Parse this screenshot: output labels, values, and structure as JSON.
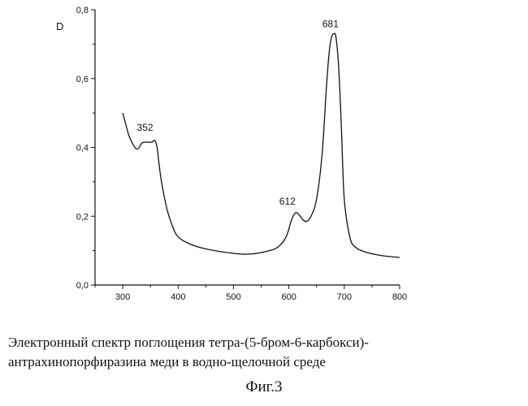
{
  "chart_data": {
    "type": "line",
    "ylabel": "D",
    "xlabel": "",
    "xlim": [
      250,
      800
    ],
    "ylim": [
      0,
      0.8
    ],
    "xticks": [
      300,
      400,
      500,
      600,
      700,
      800
    ],
    "yticks": [
      0.0,
      0.2,
      0.4,
      0.6,
      0.8
    ],
    "ytick_labels": [
      "0,0",
      "0,2",
      "0,4",
      "0,6",
      "0,8"
    ],
    "grid": false,
    "series": [
      {
        "x": [
          300,
          305,
          310,
          315,
          320,
          325,
          330,
          333,
          338,
          345,
          352,
          358,
          362,
          365,
          370,
          380,
          390,
          400,
          420,
          450,
          500,
          530,
          560,
          580,
          595,
          605,
          612,
          618,
          625,
          632,
          640,
          650,
          660,
          668,
          673,
          677,
          681,
          685,
          690,
          695,
          700,
          710,
          720,
          740,
          770,
          800
        ],
        "y": [
          0.5,
          0.47,
          0.44,
          0.42,
          0.405,
          0.395,
          0.4,
          0.41,
          0.415,
          0.415,
          0.415,
          0.42,
          0.4,
          0.36,
          0.3,
          0.22,
          0.17,
          0.14,
          0.12,
          0.105,
          0.092,
          0.09,
          0.098,
          0.11,
          0.14,
          0.19,
          0.21,
          0.205,
          0.19,
          0.185,
          0.2,
          0.25,
          0.38,
          0.58,
          0.68,
          0.72,
          0.73,
          0.72,
          0.63,
          0.45,
          0.25,
          0.14,
          0.11,
          0.095,
          0.085,
          0.08
        ]
      }
    ],
    "annotations": [
      {
        "text": "352",
        "x": 352,
        "y": 0.415
      },
      {
        "text": "612",
        "x": 612,
        "y": 0.21
      },
      {
        "text": "681",
        "x": 681,
        "y": 0.73
      }
    ]
  },
  "caption": {
    "line1": "Электронный спектр поглощения тетра-(5-бром-6-карбокси)-",
    "line2": "антрахинопорфиразина меди в водно-щелочной среде"
  },
  "figure_number": "Фиг.3"
}
